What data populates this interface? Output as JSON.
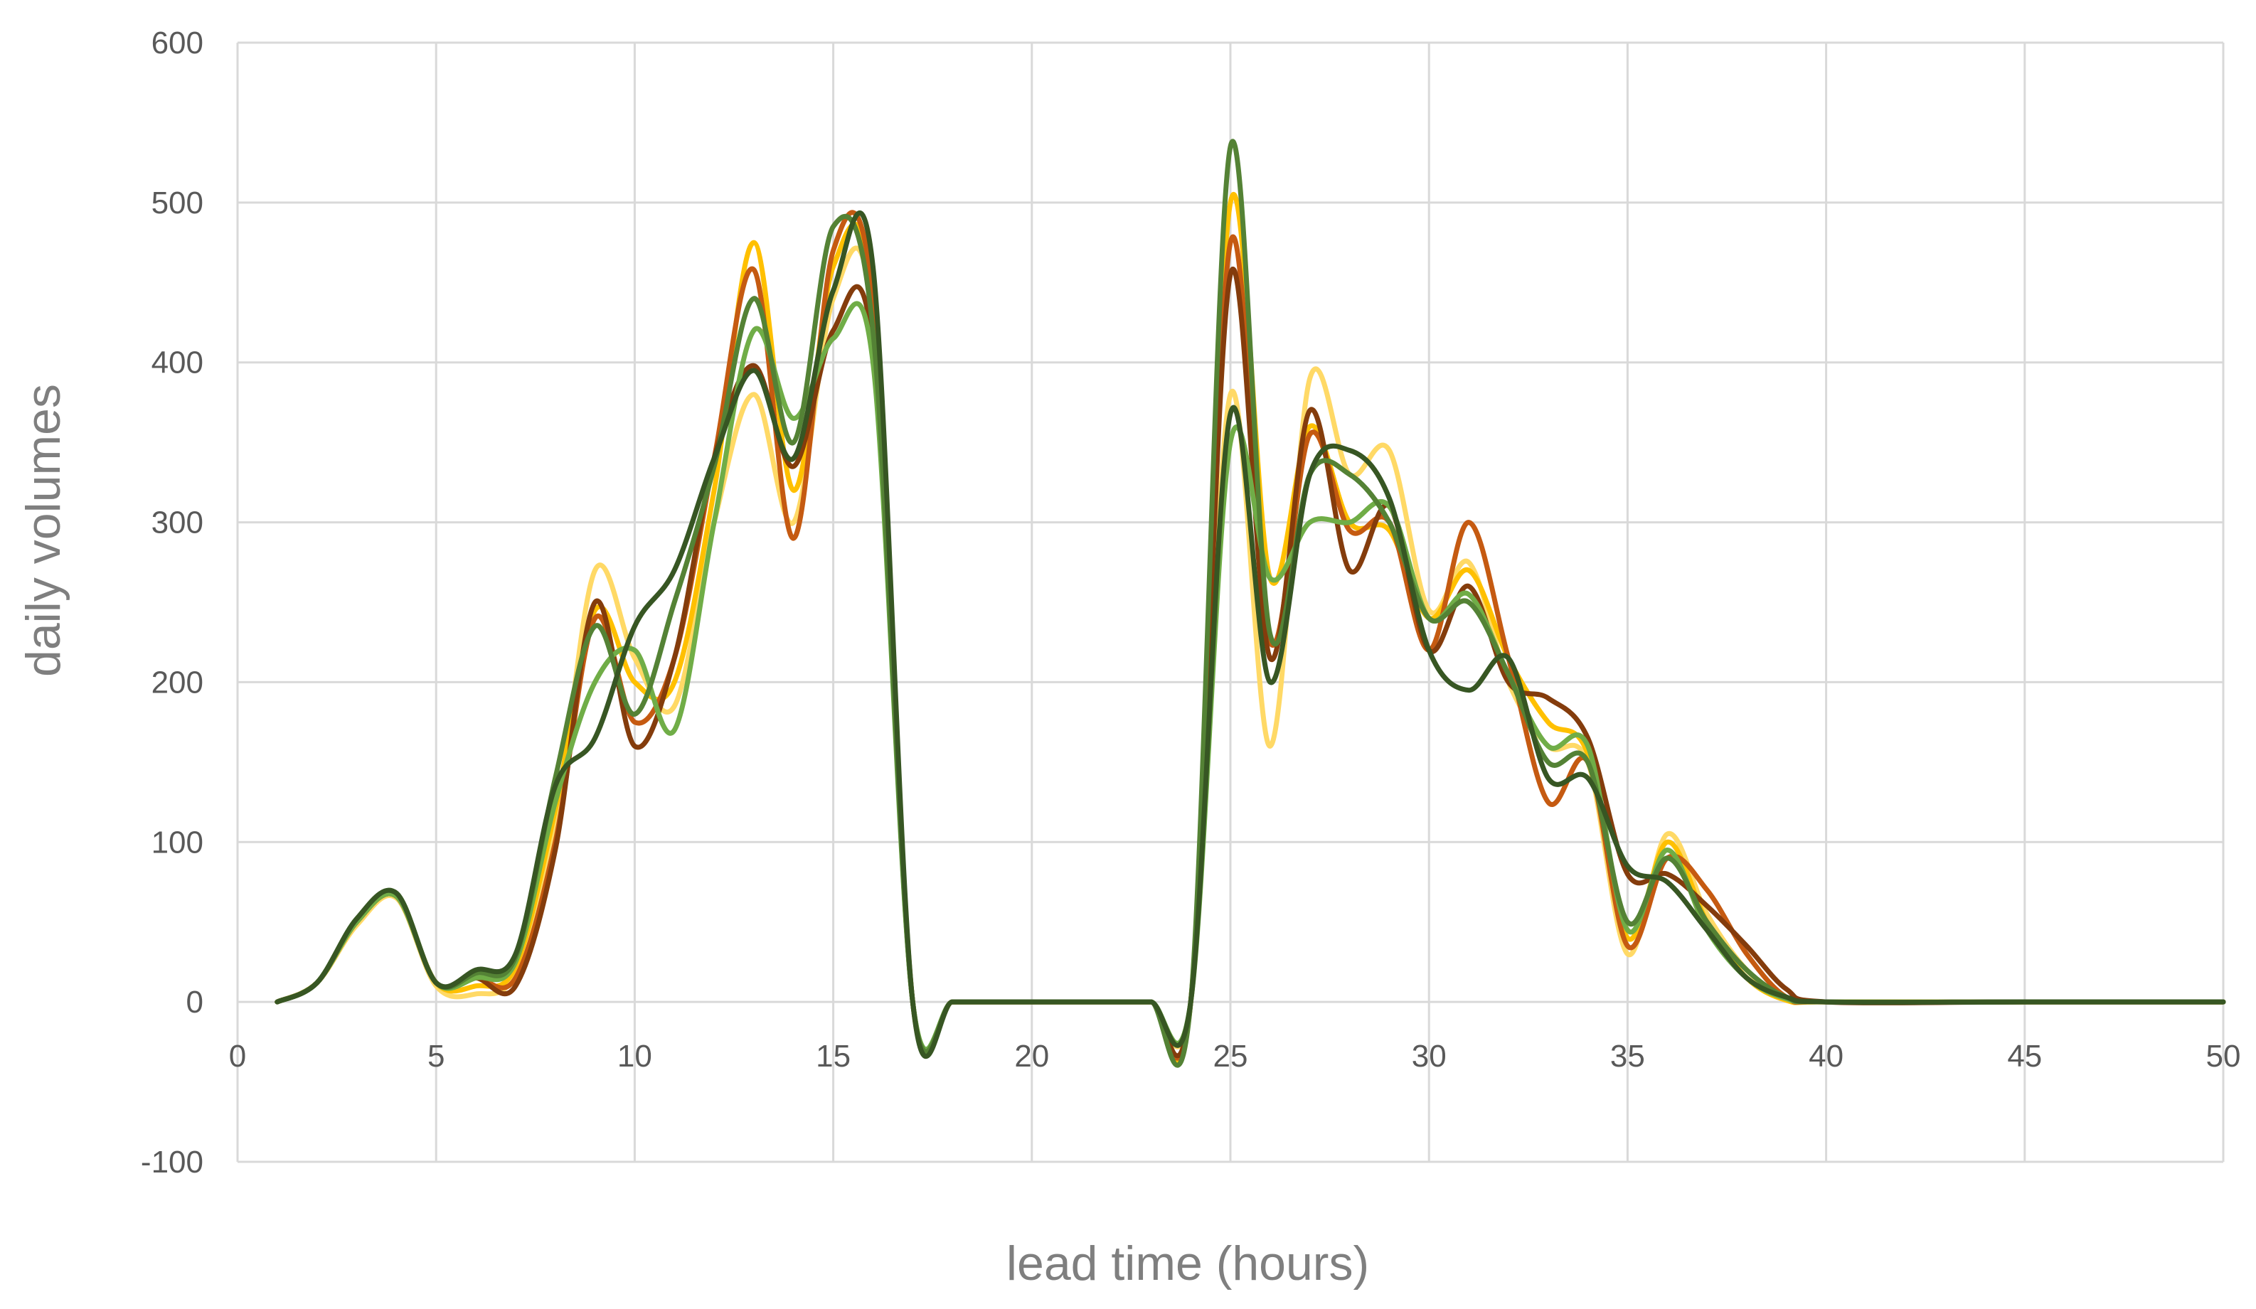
{
  "chart_data": {
    "type": "line",
    "title": "",
    "xlabel": "lead time (hours)",
    "ylabel": "daily volumes",
    "xlim": [
      0,
      50
    ],
    "ylim": [
      -100,
      600
    ],
    "xticks": [
      "0",
      "5",
      "10",
      "15",
      "20",
      "25",
      "30",
      "35",
      "40",
      "45",
      "50"
    ],
    "yticks": [
      "600",
      "500",
      "400",
      "300",
      "200",
      "100",
      "0",
      "-100"
    ],
    "grid": true,
    "legend": "none",
    "series": [
      {
        "color": "#ffd966",
        "x": [
          1,
          2,
          3,
          4,
          5,
          6,
          7,
          8,
          9,
          10,
          11,
          12,
          13,
          14,
          15,
          16,
          17,
          18,
          19,
          20,
          21,
          22,
          23,
          24,
          25,
          26,
          27,
          28,
          29,
          30,
          31,
          32,
          33,
          34,
          35,
          36,
          37,
          38,
          39,
          40,
          45,
          50
        ],
        "values": [
          0,
          12,
          48,
          65,
          10,
          5,
          18,
          110,
          270,
          215,
          185,
          300,
          380,
          300,
          440,
          430,
          0,
          0,
          0,
          0,
          0,
          0,
          0,
          0,
          380,
          160,
          390,
          330,
          345,
          245,
          275,
          200,
          160,
          150,
          30,
          105,
          55,
          20,
          2,
          0,
          0,
          0
        ]
      },
      {
        "color": "#ffc000",
        "x": [
          1,
          2,
          3,
          4,
          5,
          6,
          7,
          8,
          9,
          10,
          11,
          12,
          13,
          14,
          15,
          16,
          17,
          18,
          19,
          20,
          21,
          22,
          23,
          24,
          25,
          26,
          27,
          28,
          29,
          30,
          31,
          32,
          33,
          34,
          35,
          36,
          37,
          38,
          39,
          40,
          45,
          50
        ],
        "values": [
          0,
          12,
          50,
          66,
          12,
          10,
          22,
          120,
          245,
          200,
          200,
          320,
          475,
          320,
          460,
          440,
          0,
          0,
          0,
          0,
          0,
          0,
          0,
          0,
          500,
          265,
          360,
          300,
          295,
          240,
          270,
          215,
          175,
          155,
          40,
          100,
          50,
          15,
          1,
          0,
          0,
          0
        ]
      },
      {
        "color": "#c55a11",
        "x": [
          1,
          2,
          3,
          4,
          5,
          6,
          7,
          8,
          9,
          10,
          11,
          12,
          13,
          14,
          15,
          16,
          17,
          18,
          19,
          20,
          21,
          22,
          23,
          24,
          25,
          26,
          27,
          28,
          29,
          30,
          31,
          32,
          33,
          34,
          35,
          36,
          37,
          38,
          39,
          40,
          45,
          50
        ],
        "values": [
          0,
          12,
          50,
          66,
          12,
          15,
          15,
          100,
          240,
          175,
          215,
          340,
          458,
          290,
          470,
          440,
          0,
          0,
          0,
          0,
          0,
          0,
          0,
          0,
          475,
          225,
          355,
          295,
          300,
          220,
          300,
          215,
          125,
          150,
          35,
          90,
          70,
          30,
          3,
          0,
          0,
          0
        ]
      },
      {
        "color": "#843c0c",
        "x": [
          1,
          2,
          3,
          4,
          5,
          6,
          7,
          8,
          9,
          10,
          11,
          12,
          13,
          14,
          15,
          16,
          17,
          18,
          19,
          20,
          21,
          22,
          23,
          24,
          25,
          26,
          27,
          28,
          29,
          30,
          31,
          32,
          33,
          34,
          35,
          36,
          37,
          38,
          39,
          40,
          45,
          50
        ],
        "values": [
          0,
          12,
          50,
          66,
          12,
          15,
          10,
          95,
          250,
          160,
          215,
          340,
          398,
          335,
          420,
          410,
          0,
          0,
          0,
          0,
          0,
          0,
          0,
          0,
          455,
          215,
          370,
          270,
          310,
          220,
          260,
          200,
          190,
          165,
          80,
          80,
          60,
          35,
          8,
          0,
          0,
          0
        ]
      },
      {
        "color": "#70ad47",
        "x": [
          1,
          2,
          3,
          4,
          5,
          6,
          7,
          8,
          9,
          10,
          11,
          12,
          13,
          14,
          15,
          16,
          17,
          18,
          19,
          20,
          21,
          22,
          23,
          24,
          25,
          26,
          27,
          28,
          29,
          30,
          31,
          32,
          33,
          34,
          35,
          36,
          37,
          38,
          39,
          40,
          45,
          50
        ],
        "values": [
          0,
          12,
          50,
          66,
          12,
          15,
          25,
          125,
          200,
          220,
          170,
          300,
          420,
          365,
          415,
          400,
          0,
          0,
          0,
          0,
          0,
          0,
          0,
          0,
          350,
          265,
          300,
          300,
          310,
          240,
          255,
          205,
          160,
          160,
          45,
          95,
          45,
          15,
          2,
          0,
          0,
          0
        ]
      },
      {
        "color": "#548235",
        "x": [
          1,
          2,
          3,
          4,
          5,
          6,
          7,
          8,
          9,
          10,
          11,
          12,
          13,
          14,
          15,
          16,
          17,
          18,
          19,
          20,
          21,
          22,
          23,
          24,
          25,
          26,
          27,
          28,
          29,
          30,
          31,
          32,
          33,
          34,
          35,
          36,
          37,
          38,
          39,
          40,
          45,
          50
        ],
        "values": [
          0,
          12,
          52,
          68,
          12,
          18,
          28,
          140,
          235,
          180,
          250,
          335,
          440,
          350,
          485,
          420,
          0,
          0,
          0,
          0,
          0,
          0,
          0,
          0,
          535,
          230,
          330,
          330,
          300,
          240,
          250,
          205,
          150,
          150,
          50,
          90,
          50,
          20,
          3,
          0,
          0,
          0
        ]
      },
      {
        "color": "#375623",
        "x": [
          1,
          2,
          3,
          4,
          5,
          6,
          7,
          8,
          9,
          10,
          11,
          12,
          13,
          14,
          15,
          16,
          17,
          18,
          19,
          20,
          21,
          22,
          23,
          24,
          25,
          26,
          27,
          28,
          29,
          30,
          31,
          32,
          33,
          34,
          35,
          36,
          37,
          38,
          39,
          40,
          45,
          50
        ],
        "values": [
          0,
          12,
          52,
          68,
          12,
          20,
          30,
          135,
          165,
          235,
          270,
          340,
          395,
          340,
          445,
          460,
          0,
          0,
          0,
          0,
          0,
          0,
          0,
          0,
          368,
          200,
          330,
          345,
          315,
          220,
          195,
          215,
          140,
          140,
          85,
          75,
          45,
          15,
          3,
          0,
          0,
          0
        ]
      }
    ]
  }
}
